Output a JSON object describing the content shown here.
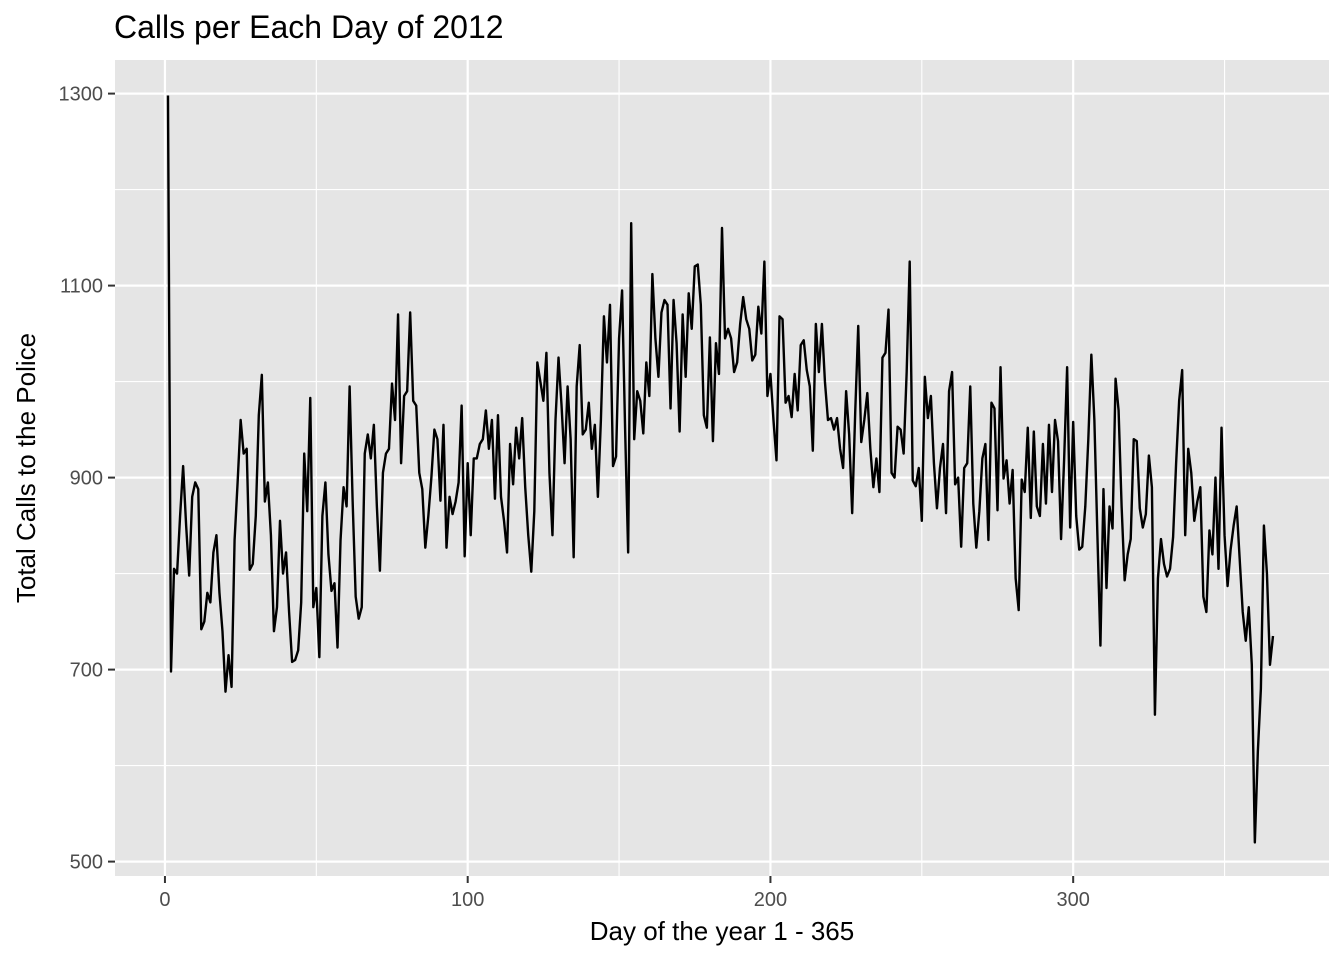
{
  "chart_data": {
    "type": "line",
    "title": "Calls per Each Day of 2012",
    "xlabel": "Day of the year 1 - 365",
    "ylabel": "Total Calls to the Police",
    "xlim": [
      -16.5,
      384.5
    ],
    "ylim": [
      485,
      1335
    ],
    "x_ticks": [
      0,
      100,
      200,
      300
    ],
    "y_ticks": [
      500,
      700,
      900,
      1100,
      1300
    ],
    "x_minor_ticks": [
      50,
      150,
      250,
      350
    ],
    "y_minor_ticks": [
      600,
      800,
      1000,
      1200
    ],
    "grid": true,
    "legend": "none",
    "background_color": "#e5e5e5",
    "line_color": "#000000",
    "series": [
      {
        "x": [
          1,
          2,
          3,
          4,
          5,
          6,
          7,
          8,
          9,
          10,
          11,
          12,
          13,
          14,
          15,
          16,
          17,
          18,
          19,
          20,
          21,
          22,
          23,
          24,
          25,
          26,
          27,
          28,
          29,
          30,
          31,
          32,
          33,
          34,
          35,
          36,
          37,
          38,
          39,
          40,
          41,
          42,
          43,
          44,
          45,
          46,
          47,
          48,
          49,
          50,
          51,
          52,
          53,
          54,
          55,
          56,
          57,
          58,
          59,
          60,
          61,
          62,
          63,
          64,
          65,
          66,
          67,
          68,
          69,
          70,
          71,
          72,
          73,
          74,
          75,
          76,
          77,
          78,
          79,
          80,
          81,
          82,
          83,
          84,
          85,
          86,
          87,
          88,
          89,
          90,
          91,
          92,
          93,
          94,
          95,
          96,
          97,
          98,
          99,
          100,
          101,
          102,
          103,
          104,
          105,
          106,
          107,
          108,
          109,
          110,
          111,
          112,
          113,
          114,
          115,
          116,
          117,
          118,
          119,
          120,
          121,
          122,
          123,
          124,
          125,
          126,
          127,
          128,
          129,
          130,
          131,
          132,
          133,
          134,
          135,
          136,
          137,
          138,
          139,
          140,
          141,
          142,
          143,
          144,
          145,
          146,
          147,
          148,
          149,
          150,
          151,
          152,
          153,
          154,
          155,
          156,
          157,
          158,
          159,
          160,
          161,
          162,
          163,
          164,
          165,
          166,
          167,
          168,
          169,
          170,
          171,
          172,
          173,
          174,
          175,
          176,
          177,
          178,
          179,
          180,
          181,
          182,
          183,
          184,
          185,
          186,
          187,
          188,
          189,
          190,
          191,
          192,
          193,
          194,
          195,
          196,
          197,
          198,
          199,
          200,
          201,
          202,
          203,
          204,
          205,
          206,
          207,
          208,
          209,
          210,
          211,
          212,
          213,
          214,
          215,
          216,
          217,
          218,
          219,
          220,
          221,
          222,
          223,
          224,
          225,
          226,
          227,
          228,
          229,
          230,
          231,
          232,
          233,
          234,
          235,
          236,
          237,
          238,
          239,
          240,
          241,
          242,
          243,
          244,
          245,
          246,
          247,
          248,
          249,
          250,
          251,
          252,
          253,
          254,
          255,
          256,
          257,
          258,
          259,
          260,
          261,
          262,
          263,
          264,
          265,
          266,
          267,
          268,
          269,
          270,
          271,
          272,
          273,
          274,
          275,
          276,
          277,
          278,
          279,
          280,
          281,
          282,
          283,
          284,
          285,
          286,
          287,
          288,
          289,
          290,
          291,
          292,
          293,
          294,
          295,
          296,
          297,
          298,
          299,
          300,
          301,
          302,
          303,
          304,
          305,
          306,
          307,
          308,
          309,
          310,
          311,
          312,
          313,
          314,
          315,
          316,
          317,
          318,
          319,
          320,
          321,
          322,
          323,
          324,
          325,
          326,
          327,
          328,
          329,
          330,
          331,
          332,
          333,
          334,
          335,
          336,
          337,
          338,
          339,
          340,
          341,
          342,
          343,
          344,
          345,
          346,
          347,
          348,
          349,
          350,
          351,
          352,
          353,
          354,
          355,
          356,
          357,
          358,
          359,
          360,
          361,
          362,
          363,
          364,
          365,
          366
        ],
        "y": [
          1298,
          698,
          805,
          800,
          860,
          912,
          850,
          798,
          880,
          895,
          888,
          742,
          750,
          780,
          770,
          822,
          840,
          780,
          740,
          677,
          715,
          682,
          835,
          895,
          960,
          925,
          930,
          804,
          810,
          860,
          965,
          1007,
          875,
          895,
          840,
          740,
          765,
          855,
          800,
          822,
          760,
          708,
          710,
          720,
          770,
          925,
          865,
          983,
          765,
          785,
          713,
          860,
          895,
          820,
          782,
          790,
          723,
          835,
          890,
          870,
          995,
          875,
          776,
          753,
          765,
          925,
          945,
          920,
          955,
          870,
          803,
          905,
          925,
          930,
          998,
          960,
          1070,
          915,
          985,
          990,
          1072,
          980,
          975,
          905,
          888,
          827,
          860,
          900,
          950,
          940,
          876,
          955,
          827,
          880,
          862,
          875,
          895,
          975,
          818,
          915,
          840,
          920,
          920,
          935,
          940,
          970,
          930,
          960,
          878,
          965,
          880,
          855,
          822,
          935,
          893,
          952,
          920,
          962,
          890,
          840,
          802,
          865,
          1020,
          1000,
          980,
          1030,
          905,
          840,
          960,
          1025,
          975,
          915,
          995,
          940,
          817,
          995,
          1038,
          945,
          950,
          978,
          930,
          955,
          880,
          960,
          1068,
          1020,
          1080,
          912,
          922,
          1045,
          1095,
          950,
          822,
          1165,
          940,
          990,
          980,
          946,
          1020,
          985,
          1112,
          1045,
          1005,
          1072,
          1085,
          1080,
          972,
          1085,
          1040,
          948,
          1070,
          1005,
          1092,
          1055,
          1120,
          1122,
          1080,
          965,
          952,
          1046,
          938,
          1040,
          1008,
          1160,
          1045,
          1055,
          1045,
          1010,
          1020,
          1060,
          1088,
          1065,
          1055,
          1022,
          1028,
          1078,
          1050,
          1125,
          985,
          1008,
          960,
          918,
          1068,
          1065,
          978,
          985,
          963,
          1008,
          970,
          1038,
          1043,
          1012,
          995,
          928,
          1060,
          1010,
          1060,
          1000,
          960,
          962,
          950,
          962,
          930,
          910,
          990,
          945,
          863,
          968,
          1058,
          937,
          960,
          988,
          930,
          890,
          920,
          885,
          1025,
          1030,
          1075,
          905,
          900,
          953,
          950,
          925,
          1010,
          1125,
          897,
          891,
          910,
          855,
          1005,
          962,
          985,
          915,
          868,
          910,
          935,
          863,
          990,
          1010,
          893,
          900,
          828,
          910,
          915,
          995,
          873,
          827,
          865,
          920,
          935,
          835,
          978,
          972,
          866,
          1015,
          899,
          918,
          873,
          908,
          795,
          762,
          898,
          885,
          952,
          858,
          948,
          870,
          860,
          935,
          873,
          955,
          885,
          960,
          938,
          836,
          918,
          1015,
          848,
          958,
          860,
          825,
          828,
          870,
          940,
          1028,
          960,
          840,
          725,
          888,
          785,
          870,
          847,
          1003,
          970,
          870,
          793,
          820,
          836,
          940,
          938,
          868,
          848,
          862,
          923,
          890,
          653,
          795,
          836,
          810,
          797,
          805,
          838,
          915,
          980,
          1012,
          840,
          930,
          905,
          855,
          875,
          890,
          776,
          760,
          845,
          820,
          900,
          805,
          952,
          840,
          787,
          825,
          850,
          870,
          815,
          760,
          730,
          765,
          705,
          520,
          615,
          680,
          850,
          800,
          705,
          735
        ]
      }
    ]
  }
}
